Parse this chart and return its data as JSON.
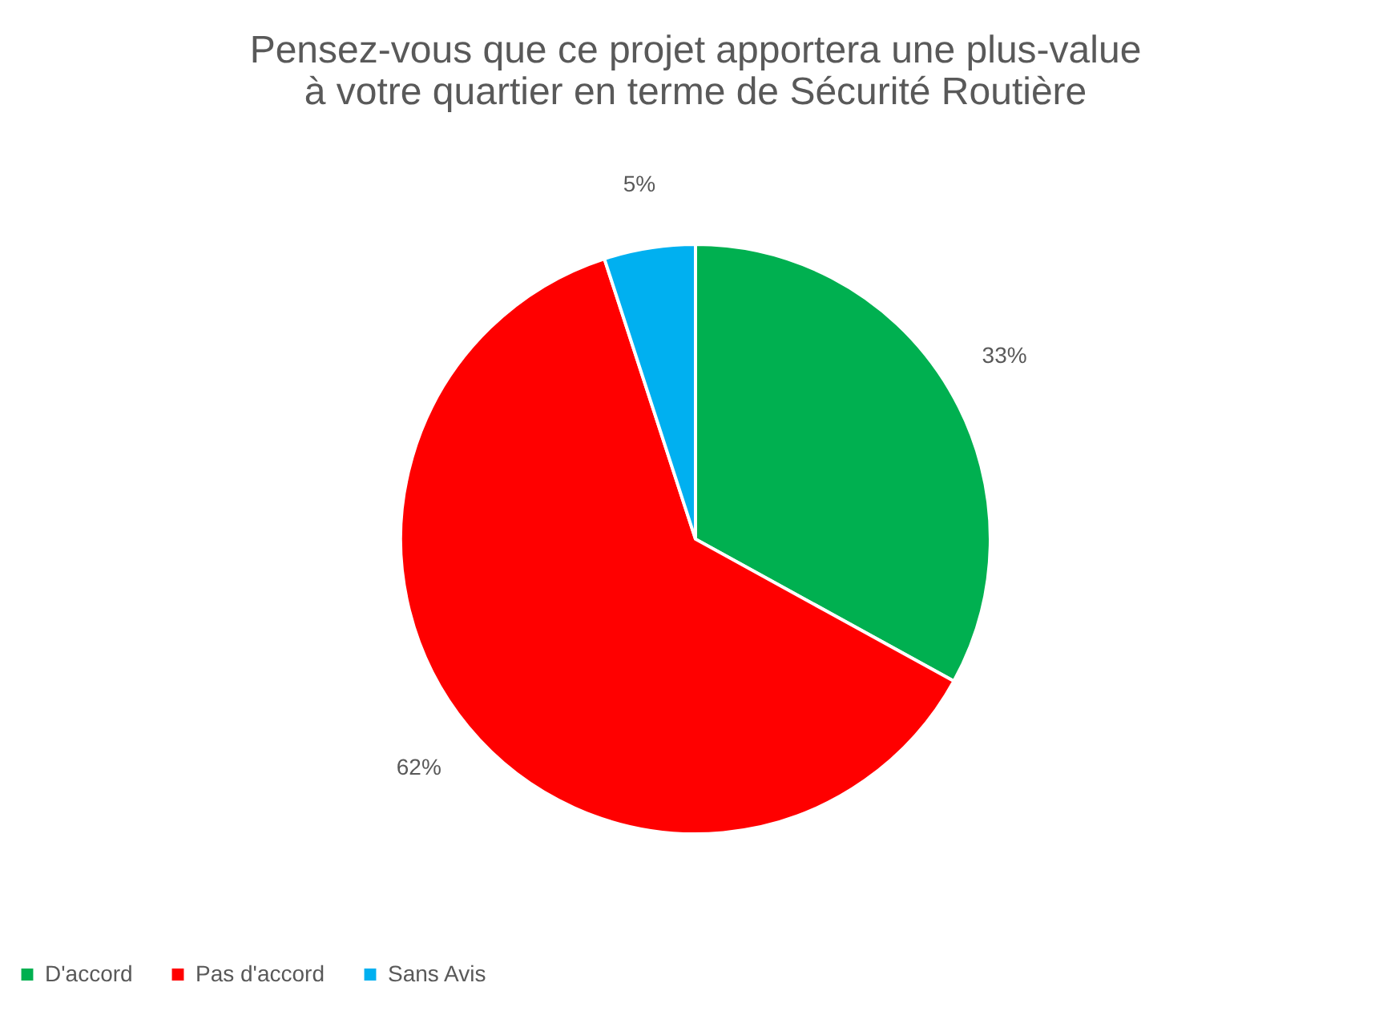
{
  "chart_data": {
    "type": "pie",
    "title": "Pensez-vous que ce projet apportera une plus-value à votre quartier en terme de Sécurité Routière",
    "categories": [
      "D'accord",
      "Pas d'accord",
      "Sans Avis"
    ],
    "values": [
      33,
      62,
      5
    ],
    "colors": [
      "#00b050",
      "#ff0000",
      "#00b0f0"
    ],
    "value_labels": [
      "33%",
      "62%",
      "5%"
    ],
    "legend": "bottom"
  }
}
